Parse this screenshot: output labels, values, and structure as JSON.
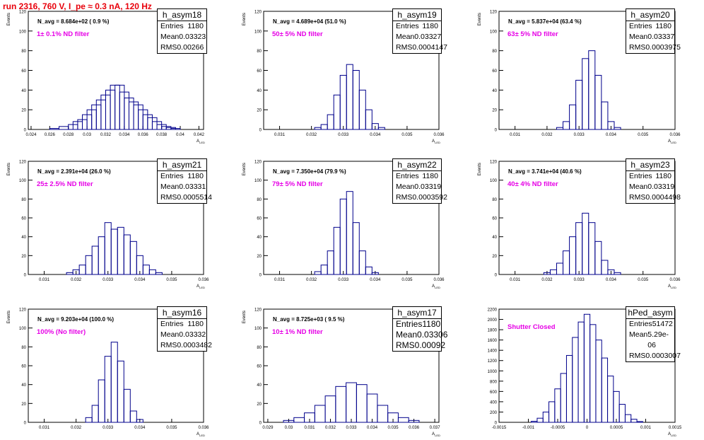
{
  "run_title": "run 2316,   760 V, I_pe ≈ 0.3 nA, 120 Hz",
  "colors": {
    "histogram": "#00008b",
    "title": "#e8000b",
    "filter_label": "#e600e6"
  },
  "chart_data": [
    {
      "type": "histogram",
      "name": "h_asym18",
      "n_avg_label": "N_avg = 8.684e+02 ( 0.9 %)",
      "filter_label": "1± 0.1% ND filter",
      "ylabel": "Events",
      "xlabel": "A_LED",
      "xlim": [
        0.0237,
        0.0425
      ],
      "ylim": [
        0,
        120
      ],
      "yticks": [
        0,
        20,
        40,
        60,
        80,
        100,
        120
      ],
      "xticks": [
        "0.024",
        "0.026",
        "0.028",
        "0.03",
        "0.032",
        "0.034",
        "0.036",
        "0.038",
        "0.04",
        "0.042"
      ],
      "xtick_values": [
        0.024,
        0.026,
        0.028,
        0.03,
        0.032,
        0.034,
        0.036,
        0.038,
        0.04,
        0.042
      ],
      "stats": {
        "entries": "1180",
        "mean": "0.03323",
        "rms": "0.00266"
      },
      "bins_x": [
        0.0265,
        0.0275,
        0.0285,
        0.029,
        0.0295,
        0.03,
        0.0305,
        0.031,
        0.0315,
        0.032,
        0.0325,
        0.033,
        0.0335,
        0.034,
        0.0345,
        0.035,
        0.0355,
        0.036,
        0.0365,
        0.037,
        0.0375,
        0.038,
        0.0385,
        0.039,
        0.0395
      ],
      "bins_y": [
        1,
        3,
        5,
        8,
        10,
        15,
        20,
        25,
        30,
        35,
        40,
        45,
        45,
        38,
        32,
        28,
        25,
        20,
        15,
        12,
        8,
        5,
        3,
        2,
        1
      ]
    },
    {
      "type": "histogram",
      "name": "h_asym19",
      "n_avg_label": "N_avg = 4.689e+04 (51.0 %)",
      "filter_label": "50± 5% ND filter",
      "ylabel": "Events",
      "xlabel": "A_LED",
      "xlim": [
        0.0305,
        0.036
      ],
      "ylim": [
        0,
        120
      ],
      "yticks": [
        0,
        20,
        40,
        60,
        80,
        100,
        120
      ],
      "xticks": [
        "0.031",
        "0.032",
        "0.033",
        "0.034",
        "0.035",
        "0.036"
      ],
      "xtick_values": [
        0.031,
        0.032,
        0.033,
        0.034,
        0.035,
        0.036
      ],
      "stats": {
        "entries": "1180",
        "mean": "0.03327",
        "rms": "0.0004147"
      },
      "bins_x": [
        0.0322,
        0.0324,
        0.0326,
        0.0328,
        0.033,
        0.0332,
        0.0334,
        0.0336,
        0.0338,
        0.034,
        0.0342
      ],
      "bins_y": [
        2,
        5,
        15,
        35,
        55,
        66,
        60,
        40,
        20,
        6,
        2
      ]
    },
    {
      "type": "histogram",
      "name": "h_asym20",
      "n_avg_label": "N_avg = 5.837e+04 (63.4 %)",
      "filter_label": "63± 5% ND filter",
      "ylabel": "Events",
      "xlabel": "A_LED",
      "xlim": [
        0.0305,
        0.036
      ],
      "ylim": [
        0,
        120
      ],
      "yticks": [
        0,
        20,
        40,
        60,
        80,
        100,
        120
      ],
      "xticks": [
        "0.031",
        "0.032",
        "0.033",
        "0.034",
        "0.035",
        "0.036"
      ],
      "xtick_values": [
        0.031,
        0.032,
        0.033,
        0.034,
        0.035,
        0.036
      ],
      "stats": {
        "entries": "1180",
        "mean": "0.03337",
        "rms": "0.0003975"
      },
      "bins_x": [
        0.0324,
        0.0326,
        0.0328,
        0.033,
        0.0332,
        0.0334,
        0.0336,
        0.0338,
        0.034,
        0.0342
      ],
      "bins_y": [
        2,
        8,
        25,
        50,
        72,
        80,
        55,
        28,
        8,
        2
      ]
    },
    {
      "type": "histogram",
      "name": "h_asym21",
      "n_avg_label": "N_avg = 2.391e+04 (26.0 %)",
      "filter_label": "25± 2.5% ND filter",
      "ylabel": "Events",
      "xlabel": "A_LED",
      "xlim": [
        0.0305,
        0.036
      ],
      "ylim": [
        0,
        120
      ],
      "yticks": [
        0,
        20,
        40,
        60,
        80,
        100,
        120
      ],
      "xticks": [
        "0.031",
        "0.032",
        "0.033",
        "0.034",
        "0.035",
        "0.036"
      ],
      "xtick_values": [
        0.031,
        0.032,
        0.033,
        0.034,
        0.035,
        0.036
      ],
      "stats": {
        "entries": "1180",
        "mean": "0.03331",
        "rms": "0.0005514"
      },
      "bins_x": [
        0.0318,
        0.032,
        0.0322,
        0.0324,
        0.0326,
        0.0328,
        0.033,
        0.0332,
        0.0334,
        0.0336,
        0.0338,
        0.034,
        0.0342,
        0.0344,
        0.0346
      ],
      "bins_y": [
        2,
        5,
        10,
        20,
        30,
        40,
        55,
        48,
        50,
        42,
        35,
        20,
        10,
        5,
        2
      ]
    },
    {
      "type": "histogram",
      "name": "h_asym22",
      "n_avg_label": "N_avg = 7.350e+04 (79.9 %)",
      "filter_label": "79± 5% ND filter",
      "ylabel": "Events",
      "xlabel": "A_LED",
      "xlim": [
        0.0305,
        0.036
      ],
      "ylim": [
        0,
        120
      ],
      "yticks": [
        0,
        20,
        40,
        60,
        80,
        100,
        120
      ],
      "xticks": [
        "0.031",
        "0.032",
        "0.033",
        "0.034",
        "0.035",
        "0.036"
      ],
      "xtick_values": [
        0.031,
        0.032,
        0.033,
        0.034,
        0.035,
        0.036
      ],
      "stats": {
        "entries": "1180",
        "mean": "0.03319",
        "rms": "0.0003592"
      },
      "bins_x": [
        0.0322,
        0.0324,
        0.0326,
        0.0328,
        0.033,
        0.0332,
        0.0334,
        0.0336,
        0.0338,
        0.034
      ],
      "bins_y": [
        3,
        10,
        25,
        50,
        80,
        88,
        55,
        25,
        8,
        2
      ]
    },
    {
      "type": "histogram",
      "name": "h_asym23",
      "n_avg_label": "N_avg = 3.741e+04 (40.6 %)",
      "filter_label": "40± 4% ND filter",
      "ylabel": "Events",
      "xlabel": "A_LED",
      "xlim": [
        0.0305,
        0.036
      ],
      "ylim": [
        0,
        120
      ],
      "yticks": [
        0,
        20,
        40,
        60,
        80,
        100,
        120
      ],
      "xticks": [
        "0.031",
        "0.032",
        "0.033",
        "0.034",
        "0.035",
        "0.036"
      ],
      "xtick_values": [
        0.031,
        0.032,
        0.033,
        0.034,
        0.035,
        0.036
      ],
      "stats": {
        "entries": "1180",
        "mean": "0.03319",
        "rms": "0.0004498"
      },
      "bins_x": [
        0.032,
        0.0322,
        0.0324,
        0.0326,
        0.0328,
        0.033,
        0.0332,
        0.0334,
        0.0336,
        0.0338,
        0.034,
        0.0342
      ],
      "bins_y": [
        2,
        5,
        12,
        25,
        40,
        55,
        65,
        55,
        35,
        15,
        5,
        2
      ]
    },
    {
      "type": "histogram",
      "name": "h_asym16",
      "n_avg_label": "N_avg = 9.203e+04 (100.0 %)",
      "filter_label": "100% (No filter)",
      "ylabel": "Events",
      "xlabel": "A_LED",
      "xlim": [
        0.0305,
        0.036
      ],
      "ylim": [
        0,
        120
      ],
      "yticks": [
        0,
        20,
        40,
        60,
        80,
        100,
        120
      ],
      "xticks": [
        "0.031",
        "0.032",
        "0.033",
        "0.034",
        "0.035",
        "0.036"
      ],
      "xtick_values": [
        0.031,
        0.032,
        0.033,
        0.034,
        0.035,
        0.036
      ],
      "stats": {
        "entries": "1180",
        "mean": "0.03332",
        "rms": "0.0003482"
      },
      "bins_x": [
        0.0324,
        0.0326,
        0.0328,
        0.033,
        0.0332,
        0.0334,
        0.0336,
        0.0338,
        0.034
      ],
      "bins_y": [
        5,
        18,
        45,
        70,
        85,
        65,
        35,
        12,
        3
      ]
    },
    {
      "type": "histogram",
      "name": "h_asym17",
      "n_avg_label": "N_avg = 8.725e+03 ( 9.5 %)",
      "filter_label": "10± 1% ND filter",
      "ylabel": "Events",
      "xlabel": "A_LED",
      "xlim": [
        0.0288,
        0.0372
      ],
      "ylim": [
        0,
        120
      ],
      "yticks": [
        0,
        20,
        40,
        60,
        80,
        100,
        120
      ],
      "xticks": [
        "0.029",
        "0.03",
        "0.031",
        "0.032",
        "0.033",
        "0.034",
        "0.035",
        "0.036",
        "0.037"
      ],
      "xtick_values": [
        0.029,
        0.03,
        0.031,
        0.032,
        0.033,
        0.034,
        0.035,
        0.036,
        0.037
      ],
      "stats": {
        "entries": "1180",
        "mean": "0.03306",
        "rms": "0.00092"
      },
      "bins_x": [
        0.03,
        0.0305,
        0.031,
        0.0315,
        0.032,
        0.0325,
        0.033,
        0.0335,
        0.034,
        0.0345,
        0.035,
        0.0355,
        0.036
      ],
      "bins_y": [
        2,
        5,
        10,
        18,
        28,
        38,
        42,
        40,
        30,
        18,
        10,
        5,
        2
      ]
    },
    {
      "type": "histogram",
      "name": "hPed_asym",
      "n_avg_label": "",
      "filter_label": "Shutter Closed",
      "ylabel": "",
      "xlabel": "A_LED",
      "xlim": [
        -0.0015,
        0.0015
      ],
      "ylim": [
        0,
        2200
      ],
      "yticks": [
        0,
        200,
        400,
        600,
        800,
        1000,
        1200,
        1400,
        1600,
        1800,
        2000,
        2200
      ],
      "xticks": [
        "-0.0015",
        "-0.001",
        "-0.0005",
        "0",
        "0.0005",
        "0.001",
        "0.0015"
      ],
      "xtick_values": [
        -0.0015,
        -0.001,
        -0.0005,
        0,
        0.0005,
        0.001,
        0.0015
      ],
      "stats": {
        "entries": "51472",
        "mean": "5.29e-06",
        "rms": "0.0003007"
      },
      "bins_x": [
        -0.0009,
        -0.0008,
        -0.0007,
        -0.0006,
        -0.0005,
        -0.0004,
        -0.0003,
        -0.0002,
        -0.0001,
        0,
        0.0001,
        0.0002,
        0.0003,
        0.0004,
        0.0005,
        0.0006,
        0.0007,
        0.0008,
        0.0009
      ],
      "bins_y": [
        20,
        80,
        200,
        400,
        650,
        950,
        1300,
        1650,
        1950,
        2100,
        1900,
        1600,
        1250,
        900,
        600,
        350,
        150,
        60,
        15
      ]
    }
  ]
}
